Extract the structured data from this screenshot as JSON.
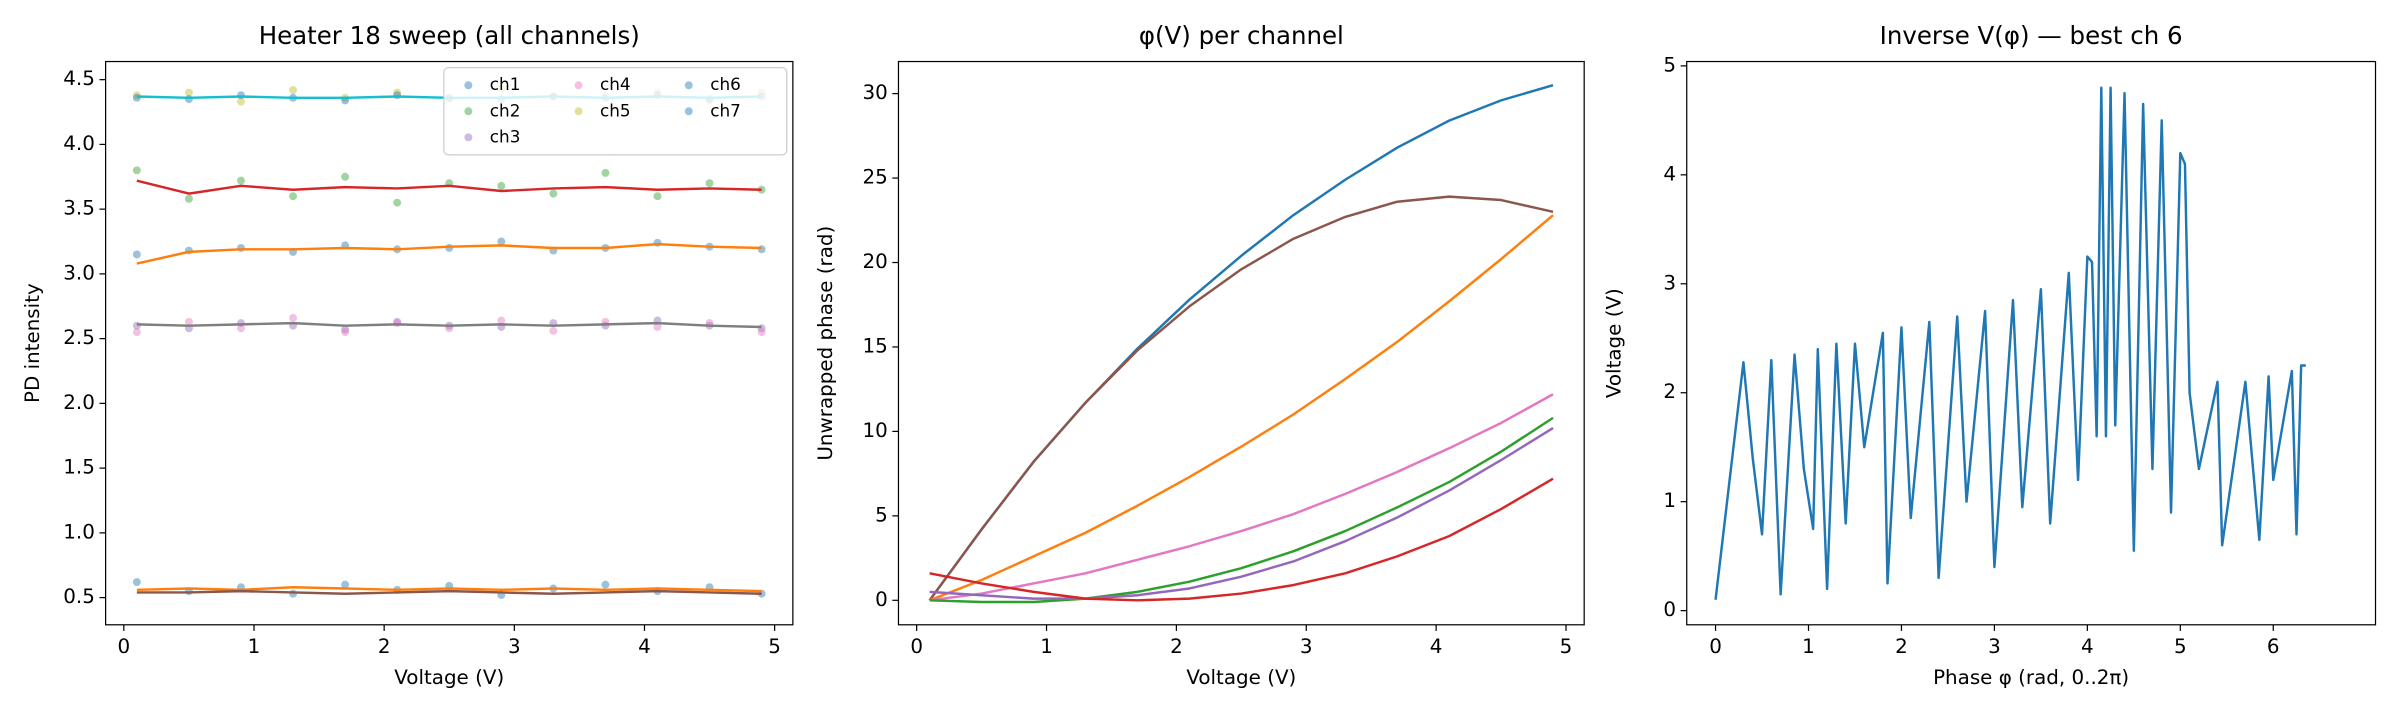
{
  "chart_data": [
    {
      "type": "scatter",
      "title": "Heater 18 sweep (all channels)",
      "x_label": "Voltage (V)",
      "y_label": "PD intensity",
      "x": [
        0.1,
        0.5,
        0.9,
        1.3,
        1.7,
        2.1,
        2.5,
        2.9,
        3.3,
        3.7,
        4.1,
        4.5,
        4.9
      ],
      "series": [
        {
          "name": "ch1",
          "color": "#1f77b4",
          "values": [
            3.15,
            3.18,
            3.2,
            3.17,
            3.22,
            3.19,
            3.2,
            3.25,
            3.18,
            3.2,
            3.24,
            3.21,
            3.19
          ]
        },
        {
          "name": "ch2",
          "color": "#2ca02c",
          "values": [
            3.8,
            3.58,
            3.72,
            3.6,
            3.75,
            3.55,
            3.7,
            3.68,
            3.62,
            3.78,
            3.6,
            3.7,
            3.65
          ]
        },
        {
          "name": "ch3",
          "color": "#9467bd",
          "values": [
            2.6,
            2.58,
            2.62,
            2.6,
            2.57,
            2.63,
            2.6,
            2.59,
            2.62,
            2.6,
            2.64,
            2.6,
            2.58
          ]
        },
        {
          "name": "ch4",
          "color": "#e377c2",
          "values": [
            2.55,
            2.63,
            2.58,
            2.66,
            2.55,
            2.62,
            2.58,
            2.64,
            2.56,
            2.63,
            2.59,
            2.62,
            2.55
          ]
        },
        {
          "name": "ch5",
          "color": "#bcbd22",
          "values": [
            4.38,
            4.4,
            4.33,
            4.42,
            4.36,
            4.4,
            4.35,
            4.43,
            4.37,
            4.38,
            4.4,
            4.34,
            4.4
          ]
        },
        {
          "name": "ch6",
          "color": "#1f77b4",
          "values": [
            4.36,
            4.35,
            4.38,
            4.36,
            4.34,
            4.38,
            4.36,
            4.35,
            4.37,
            4.36,
            4.38,
            4.35,
            4.37
          ]
        },
        {
          "name": "ch7",
          "color": "#1f77b4",
          "values": [
            0.62,
            0.55,
            0.58,
            0.53,
            0.6,
            0.56,
            0.59,
            0.52,
            0.57,
            0.6,
            0.55,
            0.58,
            0.53
          ]
        }
      ],
      "smoothed": [
        {
          "color": "#17becf",
          "values": [
            4.37,
            4.36,
            4.37,
            4.36,
            4.36,
            4.37,
            4.36,
            4.36,
            4.37,
            4.36,
            4.37,
            4.36,
            4.37
          ]
        },
        {
          "color": "#d62728",
          "values": [
            3.72,
            3.62,
            3.68,
            3.65,
            3.67,
            3.66,
            3.68,
            3.64,
            3.66,
            3.67,
            3.65,
            3.66,
            3.65
          ]
        },
        {
          "color": "#ff7f0e",
          "values": [
            3.08,
            3.17,
            3.19,
            3.19,
            3.2,
            3.19,
            3.21,
            3.22,
            3.2,
            3.2,
            3.23,
            3.21,
            3.2
          ]
        },
        {
          "color": "#7f7f7f",
          "values": [
            2.61,
            2.6,
            2.61,
            2.62,
            2.6,
            2.61,
            2.6,
            2.61,
            2.6,
            2.61,
            2.62,
            2.6,
            2.59
          ]
        },
        {
          "color": "#ff7f0e",
          "values": [
            0.56,
            0.57,
            0.56,
            0.58,
            0.57,
            0.56,
            0.57,
            0.56,
            0.57,
            0.56,
            0.57,
            0.56,
            0.55
          ]
        },
        {
          "color": "#8c564b",
          "values": [
            0.54,
            0.54,
            0.55,
            0.54,
            0.53,
            0.54,
            0.55,
            0.54,
            0.53,
            0.54,
            0.55,
            0.54,
            0.53
          ]
        }
      ],
      "xlim": [
        -0.14,
        5.14
      ],
      "ylim": [
        0.29,
        4.64
      ],
      "xticks": [
        0,
        1,
        2,
        3,
        4,
        5
      ],
      "yticks": [
        0.5,
        {
          "value": 1,
          "label": "1.0"
        },
        1.5,
        {
          "value": 2,
          "label": "2.0"
        },
        2.5,
        {
          "value": 3,
          "label": "3.0"
        },
        3.5,
        {
          "value": 4,
          "label": "4.0"
        },
        4.5
      ],
      "legend": "upper right",
      "legend_columns": 3
    },
    {
      "type": "line",
      "title": "φ(V) per channel",
      "x_label": "Voltage (V)",
      "y_label": "Unwrapped phase (rad)",
      "x": [
        0.1,
        0.5,
        0.9,
        1.3,
        1.7,
        2.1,
        2.5,
        2.9,
        3.3,
        3.7,
        4.1,
        4.5,
        4.9
      ],
      "series": [
        {
          "color": "#1f77b4",
          "values": [
            0,
            4.2,
            8.2,
            11.7,
            14.9,
            17.8,
            20.4,
            22.8,
            24.9,
            26.8,
            28.4,
            29.6,
            30.5
          ]
        },
        {
          "color": "#8c564b",
          "values": [
            0,
            4.2,
            8.2,
            11.7,
            14.8,
            17.4,
            19.6,
            21.4,
            22.7,
            23.6,
            23.9,
            23.7,
            23.0
          ]
        },
        {
          "color": "#ff7f0e",
          "values": [
            0,
            1.2,
            2.6,
            4.0,
            5.6,
            7.3,
            9.1,
            11.0,
            13.1,
            15.3,
            17.7,
            20.2,
            22.8
          ]
        },
        {
          "color": "#e377c2",
          "values": [
            0,
            0.4,
            1.0,
            1.6,
            2.4,
            3.2,
            4.1,
            5.1,
            6.3,
            7.6,
            9.0,
            10.5,
            12.2
          ]
        },
        {
          "color": "#2ca02c",
          "values": [
            0,
            -0.1,
            -0.1,
            0.1,
            0.5,
            1.1,
            1.9,
            2.9,
            4.1,
            5.5,
            7.0,
            8.8,
            10.8
          ]
        },
        {
          "color": "#9467bd",
          "values": [
            0.5,
            0.3,
            0.1,
            0.1,
            0.3,
            0.7,
            1.4,
            2.3,
            3.5,
            4.9,
            6.5,
            8.3,
            10.2
          ]
        },
        {
          "color": "#d62728",
          "values": [
            1.6,
            1.0,
            0.5,
            0.1,
            0,
            0.1,
            0.4,
            0.9,
            1.6,
            2.6,
            3.8,
            5.4,
            7.2
          ]
        }
      ],
      "xlim": [
        -0.14,
        5.14
      ],
      "ylim": [
        -1.45,
        31.9
      ],
      "xticks": [
        0,
        1,
        2,
        3,
        4,
        5
      ],
      "yticks": [
        0,
        5,
        10,
        15,
        20,
        25,
        30
      ]
    },
    {
      "type": "line",
      "title": "Inverse V(φ) — best ch 6",
      "x_label": "Phase φ (rad, 0..2π)",
      "y_label": "Voltage (V)",
      "x": [
        0,
        0.3,
        0.4,
        0.5,
        0.6,
        0.7,
        0.85,
        0.95,
        1.05,
        1.1,
        1.2,
        1.3,
        1.4,
        1.5,
        1.6,
        1.8,
        1.85,
        2.0,
        2.1,
        2.3,
        2.4,
        2.6,
        2.7,
        2.9,
        3.0,
        3.2,
        3.3,
        3.5,
        3.6,
        3.8,
        3.9,
        4.0,
        4.05,
        4.1,
        4.15,
        4.2,
        4.25,
        4.3,
        4.4,
        4.5,
        4.6,
        4.7,
        4.8,
        4.9,
        5.0,
        5.05,
        5.1,
        5.2,
        5.4,
        5.45,
        5.7,
        5.85,
        5.95,
        6.0,
        6.2,
        6.25,
        6.3,
        6.35
      ],
      "series": [
        {
          "color": "#1f77b4",
          "values": [
            0.1,
            2.28,
            1.4,
            0.7,
            2.3,
            0.15,
            2.35,
            1.3,
            0.75,
            2.4,
            0.2,
            2.45,
            0.8,
            2.45,
            1.5,
            2.55,
            0.25,
            2.6,
            0.85,
            2.65,
            0.3,
            2.7,
            1.0,
            2.75,
            0.4,
            2.85,
            0.95,
            2.95,
            0.8,
            3.1,
            1.2,
            3.25,
            3.2,
            1.6,
            4.8,
            1.6,
            4.8,
            1.7,
            4.75,
            0.55,
            4.65,
            1.3,
            4.5,
            0.9,
            4.2,
            4.1,
            2.0,
            1.3,
            2.1,
            0.6,
            2.1,
            0.65,
            2.15,
            1.2,
            2.2,
            0.7,
            2.25,
            2.25
          ]
        }
      ],
      "xlim": [
        -0.31,
        7.1
      ],
      "ylim": [
        -0.13,
        5.04
      ],
      "xticks": [
        0,
        1,
        2,
        3,
        4,
        5,
        6
      ],
      "yticks": [
        0,
        1,
        2,
        3,
        4,
        5
      ]
    }
  ]
}
